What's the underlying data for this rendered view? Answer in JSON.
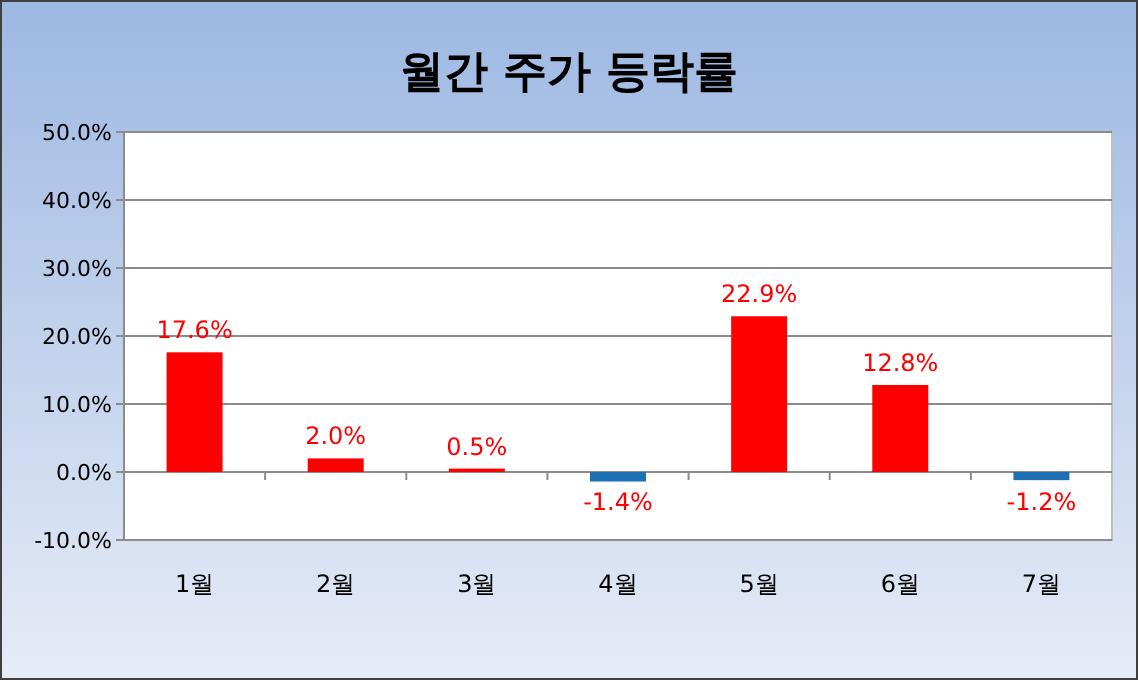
{
  "chart_data": {
    "type": "bar",
    "title": "월간 주가 등락률",
    "categories": [
      "1월",
      "2월",
      "3월",
      "4월",
      "5월",
      "6월",
      "7월"
    ],
    "values": [
      17.6,
      2.0,
      0.5,
      -1.4,
      22.9,
      12.8,
      -1.2
    ],
    "colors": [
      "#ff0000",
      "#ff0000",
      "#ff0000",
      "#1f6fb5",
      "#ff0000",
      "#ff0000",
      "#1f6fb5"
    ],
    "value_labels": [
      "17.6%",
      "2.0%",
      "0.5%",
      "-1.4%",
      "22.9%",
      "12.8%",
      "-1.2%"
    ],
    "ylim": [
      -10,
      50
    ],
    "yticks": [
      {
        "value": -10,
        "label": "-10.0%"
      },
      {
        "value": 0,
        "label": "0.0%"
      },
      {
        "value": 10,
        "label": "10.0%"
      },
      {
        "value": 20,
        "label": "20.0%"
      },
      {
        "value": 30,
        "label": "30.0%"
      },
      {
        "value": 40,
        "label": "40.0%"
      },
      {
        "value": 50,
        "label": "50.0%"
      }
    ],
    "grid": "y"
  }
}
